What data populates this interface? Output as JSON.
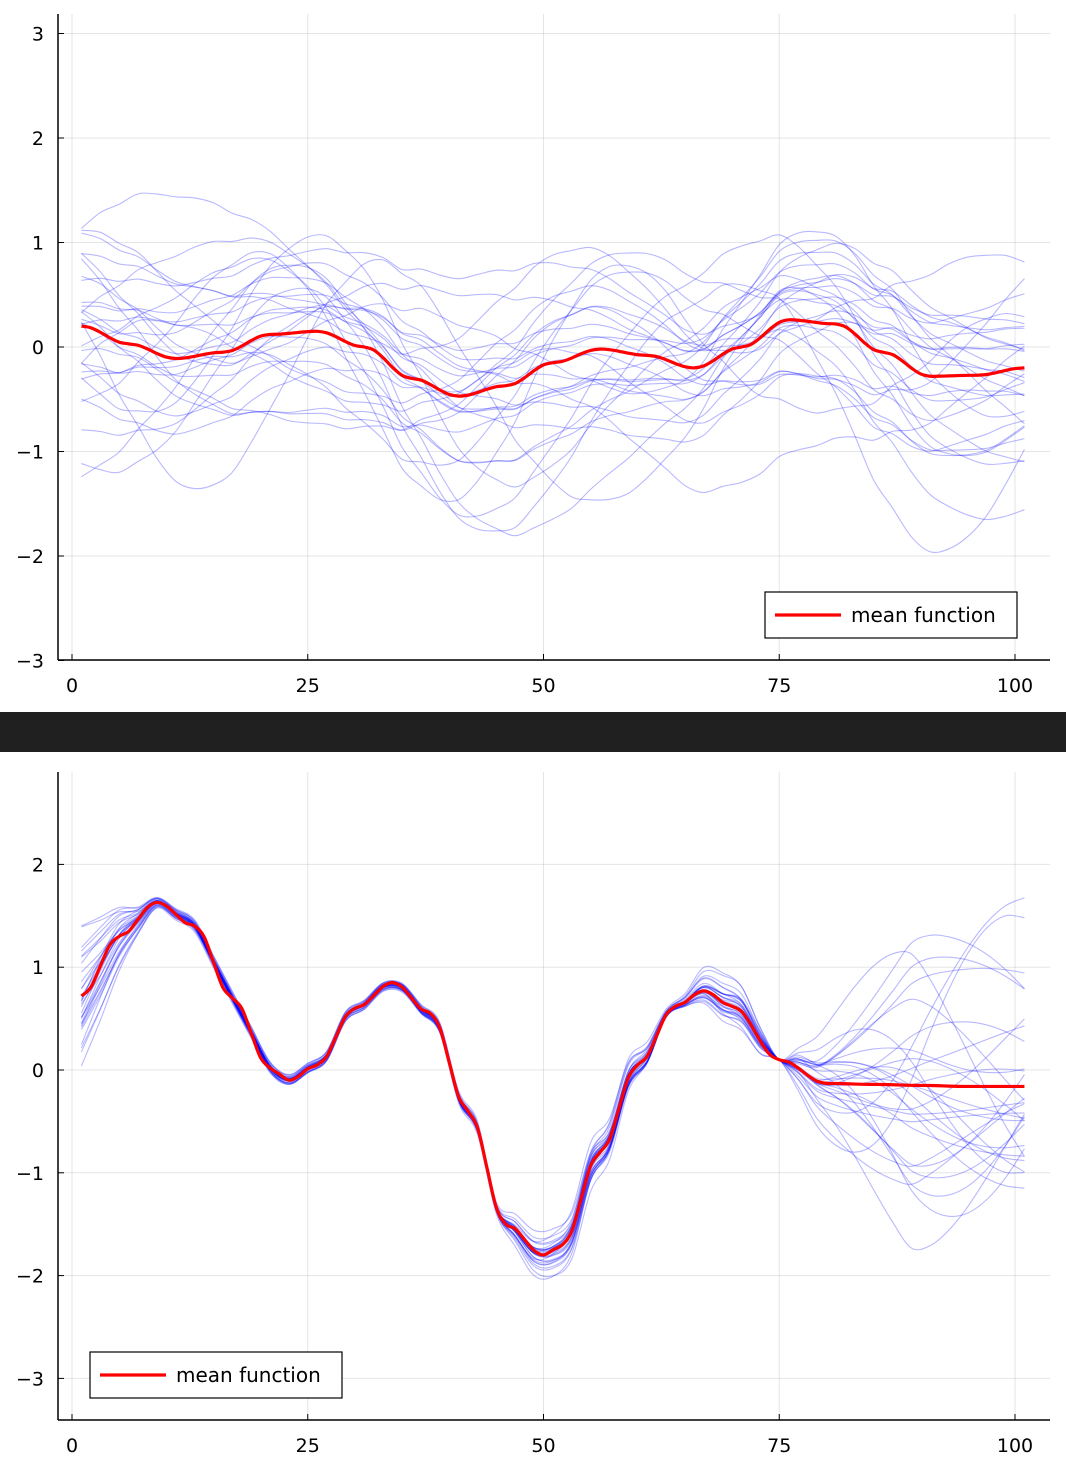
{
  "chart_data": [
    {
      "type": "line",
      "title": "",
      "xlabel": "",
      "ylabel": "",
      "xlim": [
        1,
        101
      ],
      "ylim": [
        -3,
        3.2
      ],
      "xticks": [
        0,
        25,
        50,
        75,
        100
      ],
      "yticks": [
        -3,
        -2,
        -1,
        0,
        1,
        2,
        3
      ],
      "xtick_labels": [
        "0",
        "25",
        "50",
        "75",
        "100"
      ],
      "ytick_labels": [
        "−3",
        "−2",
        "−1",
        "0",
        "1",
        "2",
        "3"
      ],
      "grid": true,
      "legend": {
        "placement": "bottom-right",
        "entries": [
          "mean function"
        ]
      },
      "mean_color": "#ff0000",
      "sample_color": "#0000ff",
      "sample_count": 30,
      "series": [
        {
          "name": "mean function",
          "x": [
            1,
            6,
            11,
            16,
            21,
            26,
            31,
            36,
            41,
            46,
            51,
            56,
            61,
            66,
            71,
            76,
            81,
            86,
            91,
            96,
            101
          ],
          "values": [
            0.2,
            0.03,
            -0.11,
            -0.05,
            0.12,
            0.15,
            0.0,
            -0.3,
            -0.47,
            -0.37,
            -0.15,
            -0.02,
            -0.08,
            -0.2,
            0.0,
            0.26,
            0.22,
            -0.05,
            -0.28,
            -0.27,
            -0.2
          ]
        }
      ]
    },
    {
      "type": "line",
      "title": "",
      "xlabel": "",
      "ylabel": "",
      "xlim": [
        1,
        101
      ],
      "ylim": [
        -3.4,
        2.9
      ],
      "xticks": [
        0,
        25,
        50,
        75,
        100
      ],
      "yticks": [
        -3,
        -2,
        -1,
        0,
        1,
        2
      ],
      "xtick_labels": [
        "0",
        "25",
        "50",
        "75",
        "100"
      ],
      "ytick_labels": [
        "−3",
        "−2",
        "−1",
        "0",
        "1",
        "2"
      ],
      "grid": true,
      "legend": {
        "placement": "bottom-left",
        "entries": [
          "mean function"
        ]
      },
      "mean_color": "#ff0000",
      "sample_color": "#0000ff",
      "sample_count": 30,
      "series": [
        {
          "name": "mean function",
          "x": [
            1,
            5,
            9,
            13,
            17,
            21,
            23,
            26,
            30,
            34,
            38,
            42,
            46,
            50,
            52,
            56,
            60,
            64,
            67,
            70,
            75,
            80,
            85,
            90,
            95,
            101
          ],
          "values": [
            0.72,
            1.3,
            1.63,
            1.4,
            0.7,
            0.02,
            -0.1,
            0.05,
            0.6,
            0.85,
            0.55,
            -0.4,
            -1.5,
            -1.8,
            -1.7,
            -0.8,
            0.05,
            0.62,
            0.77,
            0.62,
            0.1,
            -0.13,
            -0.14,
            -0.15,
            -0.16,
            -0.16
          ]
        }
      ]
    }
  ]
}
